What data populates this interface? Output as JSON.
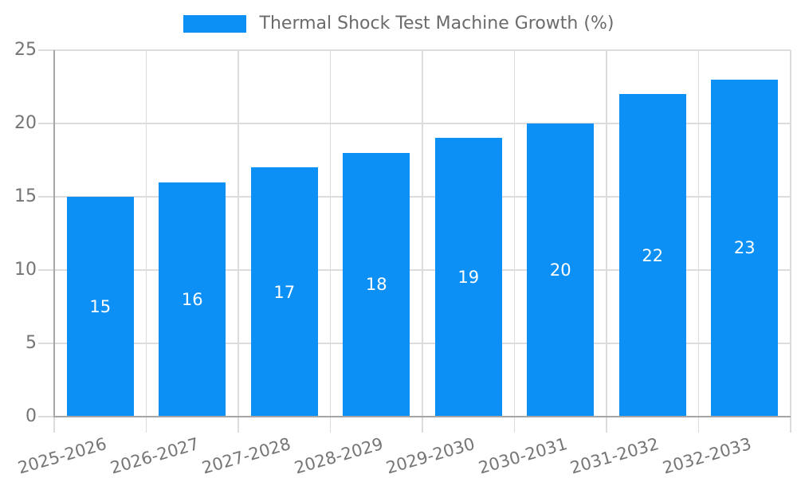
{
  "chart_data": {
    "type": "bar",
    "title": "Thermal Shock Test Machine Growth (%)",
    "categories": [
      "2025-2026",
      "2026-2027",
      "2027-2028",
      "2028-2029",
      "2029-2030",
      "2030-2031",
      "2031-2032",
      "2032-2033"
    ],
    "values": [
      15,
      16,
      17,
      18,
      19,
      20,
      22,
      23
    ],
    "xlabel": "",
    "ylabel": "",
    "ylim": [
      0,
      25
    ],
    "yticks": [
      0,
      5,
      10,
      15,
      20,
      25
    ],
    "grid": true,
    "legend_position": "top-center",
    "bar_label_position": "inside-center",
    "x_tick_rotation_deg": -16,
    "style": {
      "bar_color": "#0d90f5",
      "grid_color": "#dcdcdc",
      "axis_color": "#a6a6a6",
      "tick_label_color": "#757575",
      "legend_text_color": "#6b6b6b",
      "bar_label_color": "#ffffff",
      "background": "#ffffff"
    }
  }
}
